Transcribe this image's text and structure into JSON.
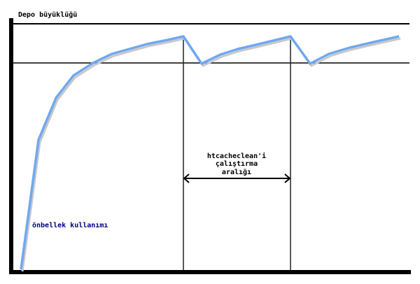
{
  "title": "Depo büyüklüğü",
  "interval_label": [
    "htcacheclean'i",
    "çalıştırma",
    "aralığı"
  ],
  "usage_label": "önbellek kullanımı",
  "colors": {
    "curve": "#6fa8f0",
    "axis": "#000000",
    "usage_label": "#000080"
  }
}
